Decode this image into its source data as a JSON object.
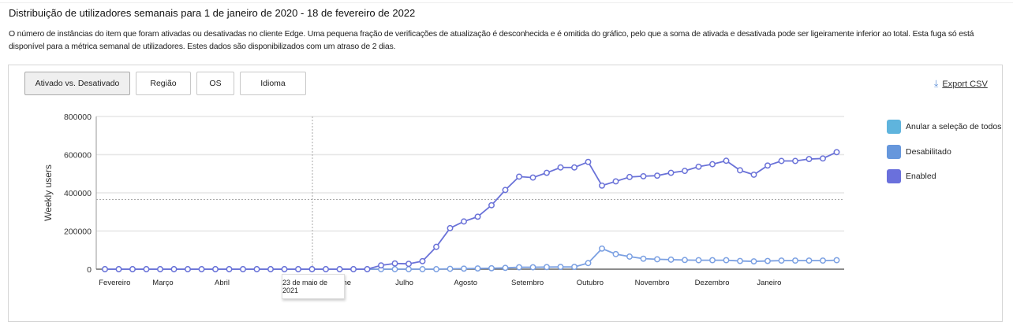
{
  "header": {
    "title": "Distribuição de utilizadores semanais para 1 de janeiro de 2020 - 18 de fevereiro de 2022",
    "description": "O número de instâncias do item que foram ativadas ou desativadas no cliente Edge. Uma pequena fração de verificações de atualização é desconhecida e é omitida do gráfico, pelo que a soma de ativada e desativada pode ser ligeiramente inferior ao total. Esta fuga só está disponível para a métrica semanal de utilizadores. Estes dados são disponibilizados com um atraso de 2 dias."
  },
  "tabs": [
    {
      "label": "Ativado vs. Desativado",
      "active": true
    },
    {
      "label": "Região"
    },
    {
      "label": "OS"
    },
    {
      "label": "Idioma"
    }
  ],
  "export": {
    "label": "Export CSV",
    "icon": "download-icon"
  },
  "tooltip": {
    "text": "23 de maio de 2021"
  },
  "chart_data": {
    "type": "line",
    "ylabel": "Weekly users",
    "ylim": [
      0,
      800000
    ],
    "yticks": [
      "0",
      "200000",
      "400000",
      "600000",
      "800000"
    ],
    "xtick_labels": [
      "Fevereiro",
      "Março",
      "Abril",
      "June",
      "Julho",
      "Agosto",
      "Setembro",
      "Outubro",
      "Novembro",
      "Dezembro",
      "Janeiro"
    ],
    "grid": true,
    "legend_position": "right",
    "legend": [
      {
        "label": "Anular a seleção de todos",
        "color": "#5fb4dd"
      },
      {
        "label": "Desabilitado",
        "color": "#6697dc"
      },
      {
        "label": "Enabled",
        "color": "#6a70dc"
      }
    ],
    "crosshair_value": 365000,
    "series": [
      {
        "name": "Enabled",
        "color": "#6a72d8",
        "values": [
          0,
          0,
          0,
          0,
          0,
          0,
          0,
          0,
          0,
          0,
          0,
          0,
          0,
          0,
          0,
          0,
          0,
          0,
          0,
          0,
          20000,
          30000,
          28000,
          42000,
          117000,
          215000,
          250000,
          275000,
          335000,
          415000,
          485000,
          480000,
          505000,
          533000,
          533000,
          562000,
          438000,
          460000,
          483000,
          487000,
          490000,
          505000,
          515000,
          537000,
          550000,
          568000,
          518000,
          495000,
          543000,
          567000,
          567000,
          577000,
          580000,
          613000
        ]
      },
      {
        "name": "Desabilitado",
        "color": "#7ba0e2",
        "values": [
          0,
          0,
          0,
          0,
          0,
          0,
          0,
          0,
          0,
          0,
          0,
          0,
          0,
          0,
          0,
          0,
          0,
          0,
          0,
          0,
          0,
          0,
          0,
          0,
          0,
          2000,
          3000,
          4000,
          5000,
          7000,
          10000,
          10000,
          11000,
          12000,
          12000,
          32000,
          108000,
          79000,
          66000,
          55000,
          52000,
          50000,
          48000,
          47000,
          47000,
          47000,
          43000,
          41000,
          43000,
          45000,
          45000,
          45000,
          45000,
          47000
        ]
      }
    ]
  }
}
